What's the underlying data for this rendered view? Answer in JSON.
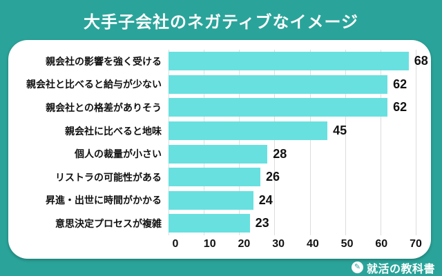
{
  "title": "大手子会社のネガティブなイメージ",
  "footer": {
    "brand": "就活の教科書",
    "icon": "pencil-note-icon"
  },
  "colors": {
    "background": "#2aa49a",
    "card": "#ffffff",
    "bar": "#68e0e0",
    "grid": "#dcdcdc",
    "text": "#111111",
    "title_text": "#ffffff"
  },
  "chart_data": {
    "type": "bar",
    "orientation": "horizontal",
    "title": "大手子会社のネガティブなイメージ",
    "categories": [
      "親会社の影響を強く受ける",
      "親会社と比べると給与が少ない",
      "親会社との格差がありそう",
      "親会社に比べると地味",
      "個人の裁量が小さい",
      "リストラの可能性がある",
      "昇進・出世に時間がかかる",
      "意思決定プロセスが複雑"
    ],
    "values": [
      68,
      62,
      62,
      45,
      28,
      26,
      24,
      23
    ],
    "xticks": [
      0,
      10,
      20,
      30,
      40,
      50,
      60,
      70
    ],
    "xlim": [
      0,
      70
    ],
    "xlabel": "",
    "ylabel": "",
    "grid": true,
    "legend": false
  }
}
